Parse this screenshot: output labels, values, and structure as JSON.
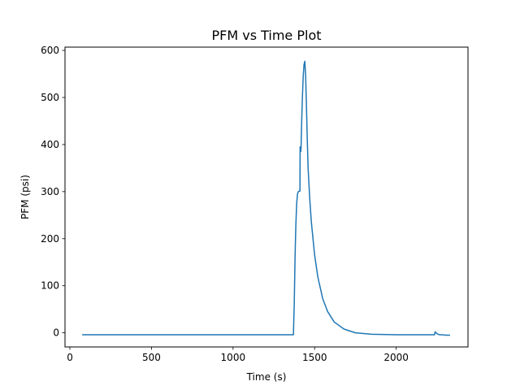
{
  "chart_data": {
    "type": "line",
    "title": "PFM vs Time Plot",
    "xlabel": "Time (s)",
    "ylabel": "PFM (psi)",
    "xlim": [
      -30,
      2440
    ],
    "ylim": [
      -30,
      607
    ],
    "xticks": [
      0,
      500,
      1000,
      1500,
      2000
    ],
    "yticks": [
      0,
      100,
      200,
      300,
      400,
      500,
      600
    ],
    "grid": false,
    "line_color": "#1f77b4",
    "series": [
      {
        "x": [
          75,
          300,
          600,
          900,
          1200,
          1370,
          1375,
          1380,
          1385,
          1390,
          1395,
          1400,
          1405,
          1410,
          1411,
          1413,
          1415,
          1417,
          1418,
          1420,
          1425,
          1430,
          1435,
          1440,
          1445,
          1450,
          1455,
          1460,
          1470,
          1480,
          1500,
          1520,
          1550,
          1580,
          1620,
          1680,
          1750,
          1850,
          2000,
          2200,
          2235,
          2238,
          2242,
          2250,
          2265,
          2280,
          2300,
          2330
        ],
        "y": [
          -4,
          -4,
          -4,
          -4,
          -4,
          -4,
          60,
          160,
          230,
          275,
          295,
          300,
          301,
          301,
          395,
          390,
          385,
          395,
          410,
          440,
          500,
          545,
          570,
          577,
          545,
          480,
          410,
          350,
          285,
          235,
          165,
          118,
          72,
          45,
          23,
          8,
          0,
          -3,
          -4,
          -4,
          -4,
          2,
          1,
          -2,
          -4,
          -4,
          -5,
          -5
        ]
      }
    ]
  }
}
